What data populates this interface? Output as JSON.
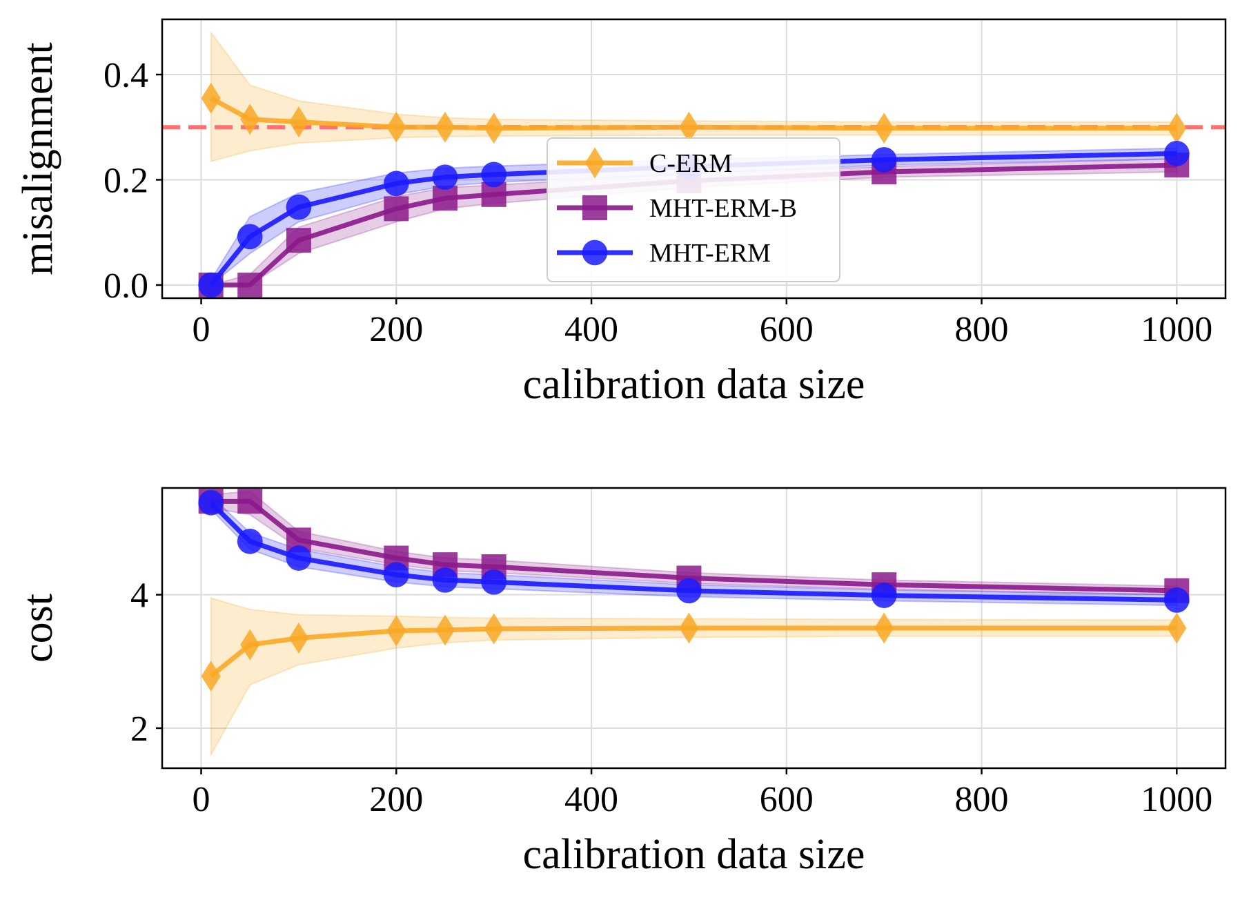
{
  "chart_data": [
    {
      "type": "line",
      "x": [
        10,
        50,
        100,
        200,
        250,
        300,
        500,
        700,
        1000
      ],
      "xlim": [
        -40,
        1050
      ],
      "ylim": [
        -0.025,
        0.505
      ],
      "xlabel": "calibration data size",
      "ylabel": "misalignment",
      "xticks": [
        0,
        200,
        400,
        600,
        800,
        1000
      ],
      "xtick_labels": [
        "0",
        "200",
        "400",
        "600",
        "800",
        "1000"
      ],
      "yticks": [
        0.0,
        0.2,
        0.4
      ],
      "ytick_labels": [
        "0.0",
        "0.2",
        "0.4"
      ],
      "grid": true,
      "reference_line": {
        "y": 0.3,
        "style": "dashed",
        "color": "#ff6f6f"
      },
      "legend": {
        "placement": "center",
        "entries": [
          "C-ERM",
          "MHT-ERM-B",
          "MHT-ERM"
        ]
      },
      "series": [
        {
          "name": "C-ERM",
          "marker": "diamond",
          "color": "#f9a825",
          "values": [
            0.355,
            0.315,
            0.31,
            0.3,
            0.3,
            0.298,
            0.3,
            0.298,
            0.298
          ],
          "lower": [
            0.235,
            0.255,
            0.27,
            0.28,
            0.282,
            0.283,
            0.285,
            0.285,
            0.285
          ],
          "upper": [
            0.48,
            0.38,
            0.35,
            0.325,
            0.318,
            0.315,
            0.312,
            0.31,
            0.31
          ]
        },
        {
          "name": "MHT-ERM-B",
          "marker": "square",
          "color": "#8b1a8b",
          "values": [
            0.0,
            0.0,
            0.085,
            0.145,
            0.165,
            0.172,
            0.198,
            0.215,
            0.228
          ],
          "lower": [
            0.0,
            0.0,
            0.06,
            0.12,
            0.145,
            0.155,
            0.185,
            0.205,
            0.215
          ],
          "upper": [
            0.0,
            0.02,
            0.11,
            0.168,
            0.185,
            0.19,
            0.212,
            0.225,
            0.24
          ]
        },
        {
          "name": "MHT-ERM",
          "marker": "circle",
          "color": "#1a1aff",
          "values": [
            0.0,
            0.092,
            0.148,
            0.193,
            0.205,
            0.21,
            0.225,
            0.238,
            0.25
          ],
          "lower": [
            0.0,
            0.06,
            0.12,
            0.172,
            0.188,
            0.195,
            0.212,
            0.228,
            0.24
          ],
          "upper": [
            0.01,
            0.13,
            0.175,
            0.213,
            0.222,
            0.226,
            0.238,
            0.248,
            0.26
          ]
        }
      ]
    },
    {
      "type": "line",
      "x": [
        10,
        50,
        100,
        200,
        250,
        300,
        500,
        700,
        1000
      ],
      "xlim": [
        -40,
        1050
      ],
      "ylim": [
        1.4,
        5.6
      ],
      "xlabel": "calibration data size",
      "ylabel": "cost",
      "xticks": [
        0,
        200,
        400,
        600,
        800,
        1000
      ],
      "xtick_labels": [
        "0",
        "200",
        "400",
        "600",
        "800",
        "1000"
      ],
      "yticks": [
        2,
        4
      ],
      "ytick_labels": [
        "2",
        "4"
      ],
      "grid": true,
      "series": [
        {
          "name": "C-ERM",
          "marker": "diamond",
          "color": "#f9a825",
          "values": [
            2.78,
            3.25,
            3.35,
            3.46,
            3.47,
            3.49,
            3.5,
            3.5,
            3.5
          ],
          "lower": [
            1.6,
            2.65,
            2.95,
            3.2,
            3.28,
            3.32,
            3.36,
            3.38,
            3.38
          ],
          "upper": [
            3.95,
            3.78,
            3.7,
            3.68,
            3.66,
            3.65,
            3.64,
            3.63,
            3.62
          ]
        },
        {
          "name": "MHT-ERM-B",
          "marker": "square",
          "color": "#8b1a8b",
          "values": [
            5.4,
            5.4,
            4.82,
            4.55,
            4.45,
            4.42,
            4.25,
            4.15,
            4.06
          ],
          "lower": [
            5.3,
            5.2,
            4.7,
            4.45,
            4.36,
            4.33,
            4.17,
            4.08,
            4.0
          ],
          "upper": [
            5.5,
            5.55,
            4.95,
            4.65,
            4.55,
            4.52,
            4.33,
            4.22,
            4.13
          ]
        },
        {
          "name": "MHT-ERM",
          "marker": "circle",
          "color": "#1a1aff",
          "values": [
            5.38,
            4.8,
            4.55,
            4.3,
            4.22,
            4.19,
            4.06,
            3.99,
            3.92
          ],
          "lower": [
            5.28,
            4.68,
            4.42,
            4.19,
            4.12,
            4.09,
            3.97,
            3.91,
            3.84
          ],
          "upper": [
            5.48,
            4.93,
            4.68,
            4.42,
            4.33,
            4.3,
            4.15,
            4.07,
            4.0
          ]
        }
      ]
    }
  ]
}
